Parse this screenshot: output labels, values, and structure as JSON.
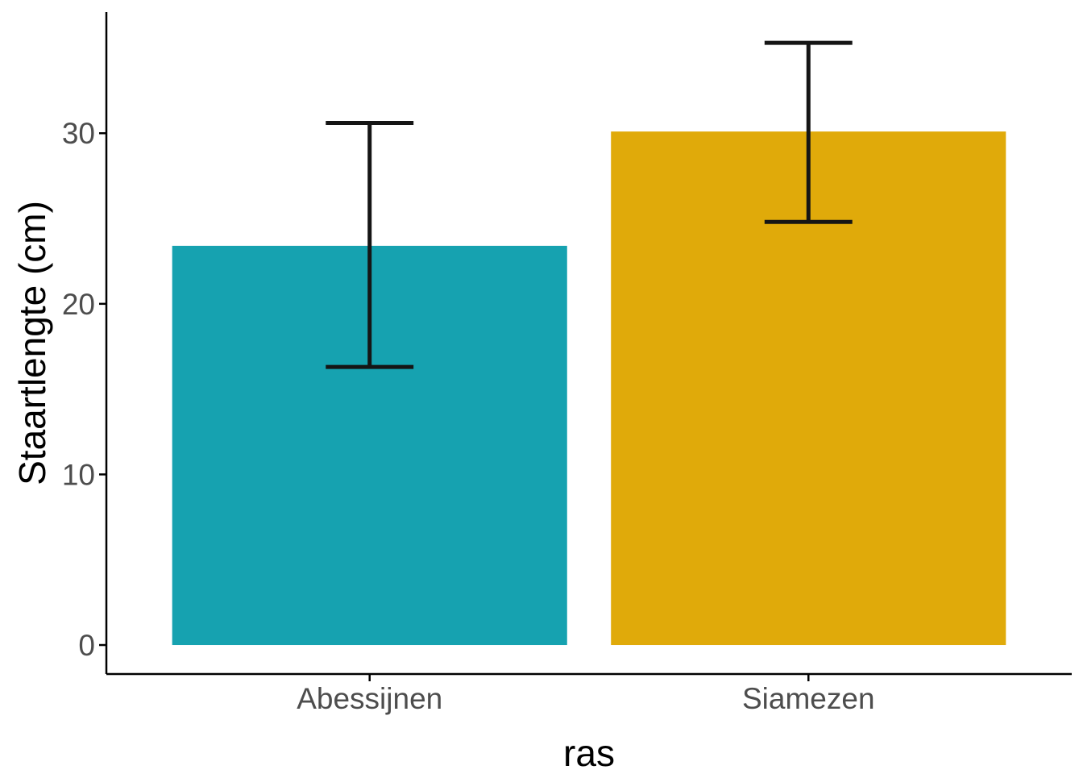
{
  "chart_data": {
    "type": "bar",
    "title": "",
    "xlabel": "ras",
    "ylabel": "Staartlengte (cm)",
    "categories": [
      "Abessijnen",
      "Siamezen"
    ],
    "values": [
      23.4,
      30.1
    ],
    "error_low": [
      16.3,
      24.8
    ],
    "error_high": [
      30.6,
      35.3
    ],
    "colors": [
      "#16A2B0",
      "#E0AA0A"
    ],
    "error_color": "#151515",
    "yticks": [
      0,
      10,
      20,
      30
    ],
    "ylim": [
      -1.7,
      37.1
    ],
    "grid": false,
    "legend": "none"
  }
}
